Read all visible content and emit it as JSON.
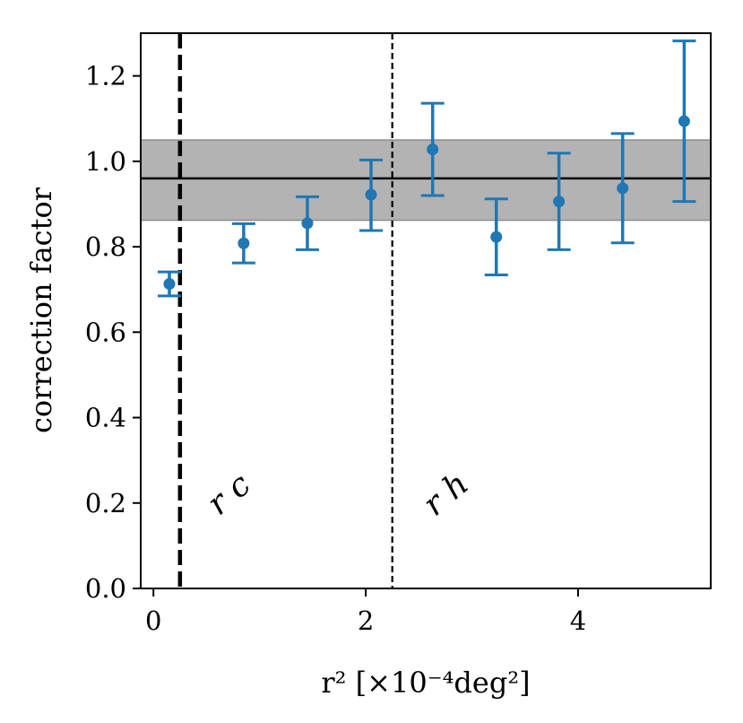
{
  "chart_data": {
    "type": "scatter",
    "xlabel": "r² [×10⁻⁴deg²]",
    "ylabel": "correction factor",
    "xlim": [
      -0.12,
      5.25
    ],
    "ylim": [
      0.0,
      1.3
    ],
    "xticks": [
      0,
      2,
      4
    ],
    "yticks": [
      0.0,
      0.2,
      0.4,
      0.6,
      0.8,
      1.0,
      1.2
    ],
    "x_tick_labels": [
      "0",
      "2",
      "4"
    ],
    "y_tick_labels": [
      "0.0",
      "0.2",
      "0.4",
      "0.6",
      "0.8",
      "1.0",
      "1.2"
    ],
    "grid": false,
    "series": [
      {
        "x": [
          0.15,
          0.85,
          1.45,
          2.05,
          2.63,
          3.23,
          3.82,
          4.42,
          5.0
        ],
        "y": [
          0.713,
          0.808,
          0.855,
          0.922,
          1.028,
          0.823,
          0.906,
          0.937,
          1.094
        ],
        "yerr_low": [
          0.028,
          0.046,
          0.062,
          0.084,
          0.108,
          0.089,
          0.113,
          0.128,
          0.188
        ],
        "yerr_high": [
          0.028,
          0.046,
          0.062,
          0.081,
          0.108,
          0.089,
          0.113,
          0.128,
          0.188
        ],
        "color": "#1f77b4"
      }
    ],
    "horizontal_line": {
      "y": 0.96,
      "color": "#000000"
    },
    "band": {
      "y_low": 0.862,
      "y_high": 1.05,
      "color": "#b3b3b3",
      "edge": "#8c8c8c"
    },
    "vertical_lines": [
      {
        "x": 0.25,
        "style": "dashed-thick",
        "label": "r c",
        "color": "#000000"
      },
      {
        "x": 2.25,
        "style": "dashed-thin",
        "label": "r h",
        "color": "#000000"
      }
    ]
  }
}
